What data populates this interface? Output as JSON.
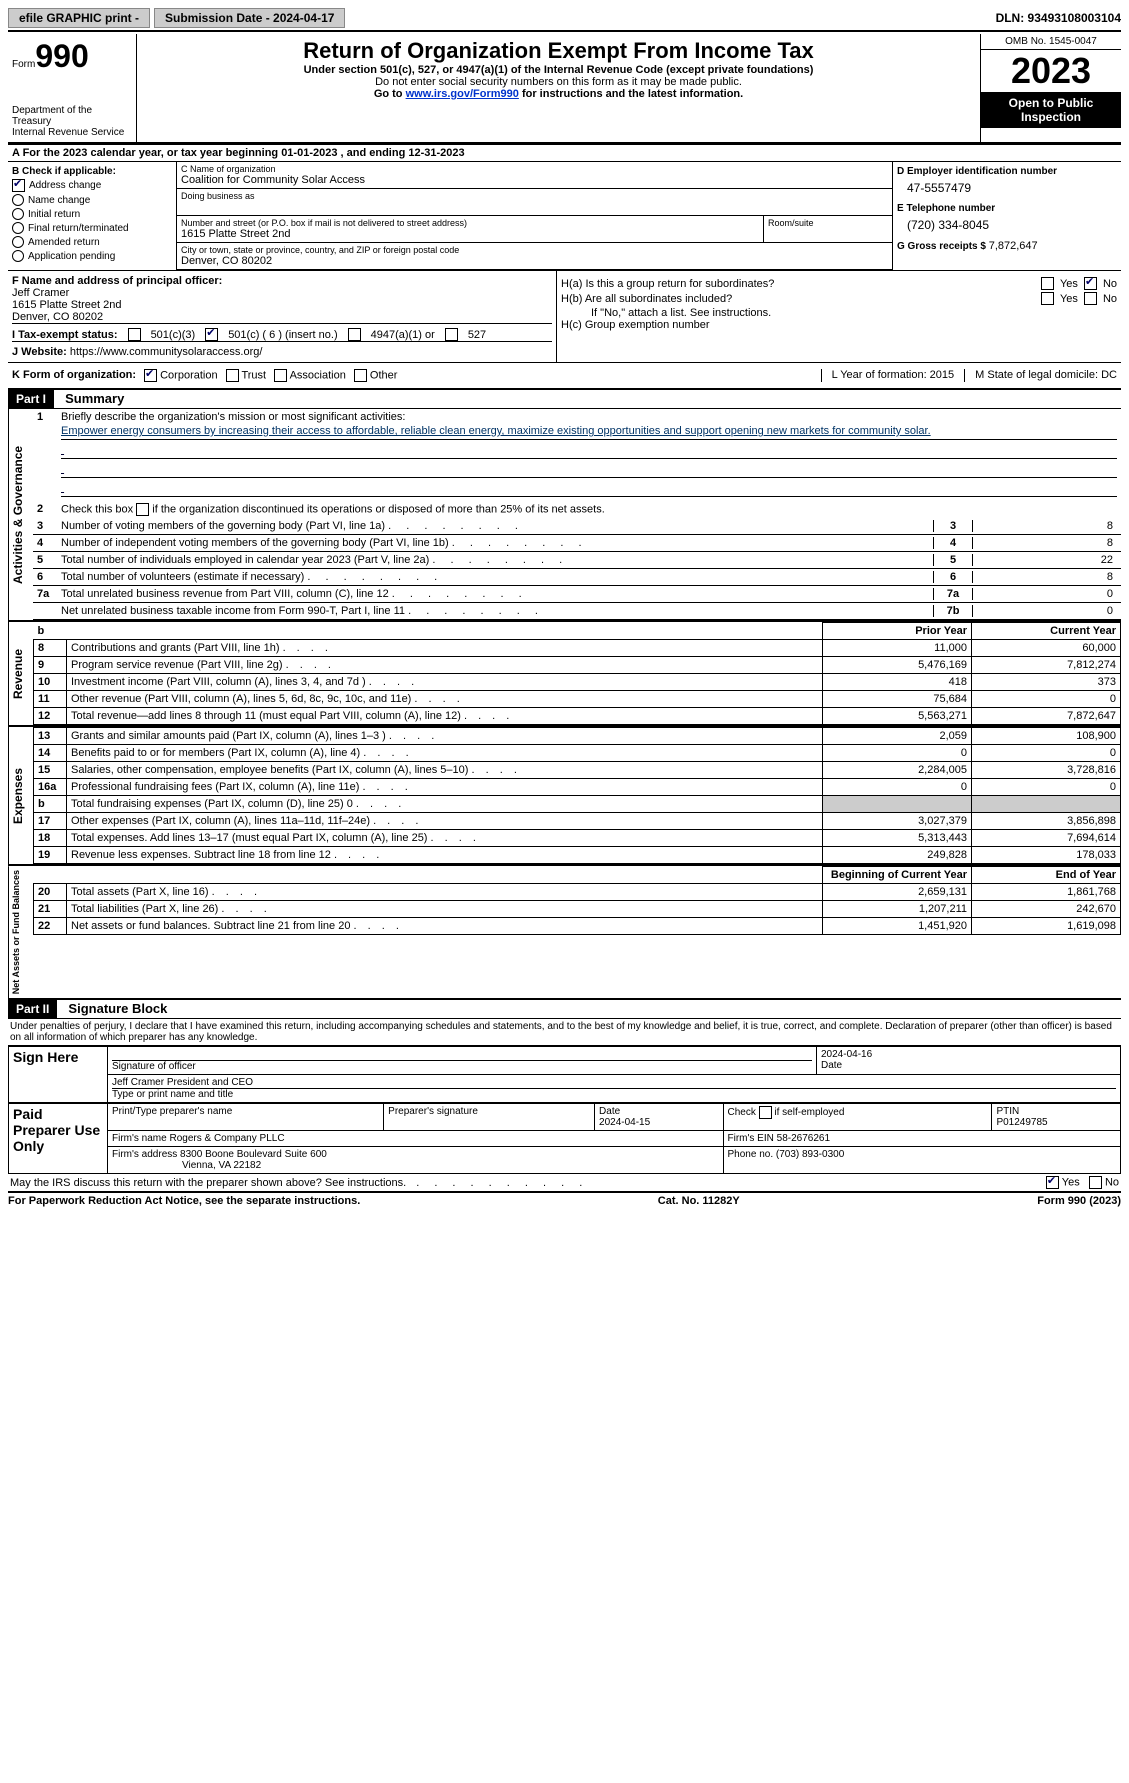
{
  "top": {
    "efile": "efile GRAPHIC print -",
    "submission": "Submission Date - 2024-04-17",
    "dln": "DLN: 93493108003104"
  },
  "header": {
    "form_prefix": "Form",
    "form_num": "990",
    "dept1": "Department of the Treasury",
    "dept2": "Internal Revenue Service",
    "title": "Return of Organization Exempt From Income Tax",
    "sub1": "Under section 501(c), 527, or 4947(a)(1) of the Internal Revenue Code (except private foundations)",
    "sub2": "Do not enter social security numbers on this form as it may be made public.",
    "goto": "Go to ",
    "goto_link": "www.irs.gov/Form990",
    "goto_suffix": " for instructions and the latest information.",
    "omb": "OMB No. 1545-0047",
    "year": "2023",
    "open": "Open to Public Inspection"
  },
  "row_a": "A  For the 2023 calendar year, or tax year beginning 01-01-2023    , and ending 12-31-2023",
  "box_b": {
    "title": "B Check if applicable:",
    "items": [
      {
        "label": "Address change",
        "checked": true
      },
      {
        "label": "Name change",
        "checked": false
      },
      {
        "label": "Initial return",
        "checked": false
      },
      {
        "label": "Final return/terminated",
        "checked": false
      },
      {
        "label": "Amended return",
        "checked": false
      },
      {
        "label": "Application pending",
        "checked": false
      }
    ]
  },
  "box_c": {
    "name_label": "C Name of organization",
    "name": "Coalition for Community Solar Access",
    "dba_label": "Doing business as",
    "dba": "",
    "street_label": "Number and street (or P.O. box if mail is not delivered to street address)",
    "street": "1615 Platte Street 2nd",
    "room_label": "Room/suite",
    "room": "",
    "city_label": "City or town, state or province, country, and ZIP or foreign postal code",
    "city": "Denver, CO  80202"
  },
  "box_d": {
    "ein_label": "D Employer identification number",
    "ein": "47-5557479",
    "phone_label": "E Telephone number",
    "phone": "(720) 334-8045",
    "gross_label": "G Gross receipts $ ",
    "gross": "7,872,647"
  },
  "box_f": {
    "label": "F  Name and address of principal officer:",
    "name": "Jeff Cramer",
    "street": "1615 Platte Street 2nd",
    "city": "Denver, CO  80202"
  },
  "box_h": {
    "a": "H(a)  Is this a group return for subordinates?",
    "b": "H(b)  Are all subordinates included?",
    "b_note": "If \"No,\" attach a list. See instructions.",
    "c": "H(c)  Group exemption number ",
    "yes": "Yes",
    "no": "No"
  },
  "row_i": {
    "label": "I    Tax-exempt status:",
    "opts": [
      "501(c)(3)",
      "501(c) ( 6 ) (insert no.)",
      "4947(a)(1) or",
      "527"
    ]
  },
  "row_j": {
    "label": "J    Website: ",
    "url": "https://www.communitysolaraccess.org/"
  },
  "row_k": {
    "label": "K Form of organization:",
    "opts": [
      "Corporation",
      "Trust",
      "Association",
      "Other"
    ],
    "l": "L Year of formation: 2015",
    "m": "M State of legal domicile: DC"
  },
  "part1": {
    "head": "Part I",
    "title": "Summary"
  },
  "activities": {
    "label": "Activities & Governance",
    "q1_label": "Briefly describe the organization's mission or most significant activities:",
    "q1_text": "Empower energy consumers by increasing their access to affordable, reliable clean energy, maximize existing opportunities and support opening new markets for community solar.",
    "q2": "Check this box     if the organization discontinued its operations or disposed of more than 25% of its net assets.",
    "rows": [
      {
        "n": "3",
        "txt": "Number of voting members of the governing body (Part VI, line 1a)",
        "box": "3",
        "val": "8"
      },
      {
        "n": "4",
        "txt": "Number of independent voting members of the governing body (Part VI, line 1b)",
        "box": "4",
        "val": "8"
      },
      {
        "n": "5",
        "txt": "Total number of individuals employed in calendar year 2023 (Part V, line 2a)",
        "box": "5",
        "val": "22"
      },
      {
        "n": "6",
        "txt": "Total number of volunteers (estimate if necessary)",
        "box": "6",
        "val": "8"
      },
      {
        "n": "7a",
        "txt": "Total unrelated business revenue from Part VIII, column (C), line 12",
        "box": "7a",
        "val": "0"
      },
      {
        "n": "",
        "txt": "Net unrelated business taxable income from Form 990-T, Part I, line 11",
        "box": "7b",
        "val": "0"
      }
    ]
  },
  "revenue": {
    "label": "Revenue",
    "head_prior": "Prior Year",
    "head_curr": "Current Year",
    "rows": [
      {
        "n": "8",
        "txt": "Contributions and grants (Part VIII, line 1h)",
        "p": "11,000",
        "c": "60,000"
      },
      {
        "n": "9",
        "txt": "Program service revenue (Part VIII, line 2g)",
        "p": "5,476,169",
        "c": "7,812,274"
      },
      {
        "n": "10",
        "txt": "Investment income (Part VIII, column (A), lines 3, 4, and 7d )",
        "p": "418",
        "c": "373"
      },
      {
        "n": "11",
        "txt": "Other revenue (Part VIII, column (A), lines 5, 6d, 8c, 9c, 10c, and 11e)",
        "p": "75,684",
        "c": "0"
      },
      {
        "n": "12",
        "txt": "Total revenue—add lines 8 through 11 (must equal Part VIII, column (A), line 12)",
        "p": "5,563,271",
        "c": "7,872,647"
      }
    ]
  },
  "expenses": {
    "label": "Expenses",
    "rows": [
      {
        "n": "13",
        "txt": "Grants and similar amounts paid (Part IX, column (A), lines 1–3 )",
        "p": "2,059",
        "c": "108,900"
      },
      {
        "n": "14",
        "txt": "Benefits paid to or for members (Part IX, column (A), line 4)",
        "p": "0",
        "c": "0"
      },
      {
        "n": "15",
        "txt": "Salaries, other compensation, employee benefits (Part IX, column (A), lines 5–10)",
        "p": "2,284,005",
        "c": "3,728,816"
      },
      {
        "n": "16a",
        "txt": "Professional fundraising fees (Part IX, column (A), line 11e)",
        "p": "0",
        "c": "0"
      },
      {
        "n": "b",
        "txt": "Total fundraising expenses (Part IX, column (D), line 25) 0",
        "p": "SHADED",
        "c": "SHADED"
      },
      {
        "n": "17",
        "txt": "Other expenses (Part IX, column (A), lines 11a–11d, 11f–24e)",
        "p": "3,027,379",
        "c": "3,856,898"
      },
      {
        "n": "18",
        "txt": "Total expenses. Add lines 13–17 (must equal Part IX, column (A), line 25)",
        "p": "5,313,443",
        "c": "7,694,614"
      },
      {
        "n": "19",
        "txt": "Revenue less expenses. Subtract line 18 from line 12",
        "p": "249,828",
        "c": "178,033"
      }
    ]
  },
  "netassets": {
    "label": "Net Assets or Fund Balances",
    "head_beg": "Beginning of Current Year",
    "head_end": "End of Year",
    "rows": [
      {
        "n": "20",
        "txt": "Total assets (Part X, line 16)",
        "p": "2,659,131",
        "c": "1,861,768"
      },
      {
        "n": "21",
        "txt": "Total liabilities (Part X, line 26)",
        "p": "1,207,211",
        "c": "242,670"
      },
      {
        "n": "22",
        "txt": "Net assets or fund balances. Subtract line 21 from line 20",
        "p": "1,451,920",
        "c": "1,619,098"
      }
    ]
  },
  "part2": {
    "head": "Part II",
    "title": "Signature Block",
    "decl": "Under penalties of perjury, I declare that I have examined this return, including accompanying schedules and statements, and to the best of my knowledge and belief, it is true, correct, and complete. Declaration of preparer (other than officer) is based on all information of which preparer has any knowledge."
  },
  "sign": {
    "here": "Sign Here",
    "sig_label": "Signature of officer",
    "date": "2024-04-16",
    "name": "Jeff Cramer  President and CEO",
    "name_label": "Type or print name and title"
  },
  "paid": {
    "label": "Paid Preparer Use Only",
    "print_label": "Print/Type preparer's name",
    "prep_sig": "Preparer's signature",
    "date_label": "Date",
    "date": "2024-04-15",
    "check_label": "Check     if self-employed",
    "ptin_label": "PTIN",
    "ptin": "P01249785",
    "firm_label": "Firm's name   ",
    "firm": "Rogers & Company PLLC",
    "ein_label": "Firm's EIN  ",
    "ein": "58-2676261",
    "addr_label": "Firm's address ",
    "addr1": "8300 Boone Boulevard Suite 600",
    "addr2": "Vienna, VA  22182",
    "phone_label": "Phone no. ",
    "phone": "(703) 893-0300"
  },
  "discuss": "May the IRS discuss this return with the preparer shown above? See instructions.",
  "footer": {
    "left": "For Paperwork Reduction Act Notice, see the separate instructions.",
    "mid": "Cat. No. 11282Y",
    "right": "Form 990 (2023)"
  }
}
